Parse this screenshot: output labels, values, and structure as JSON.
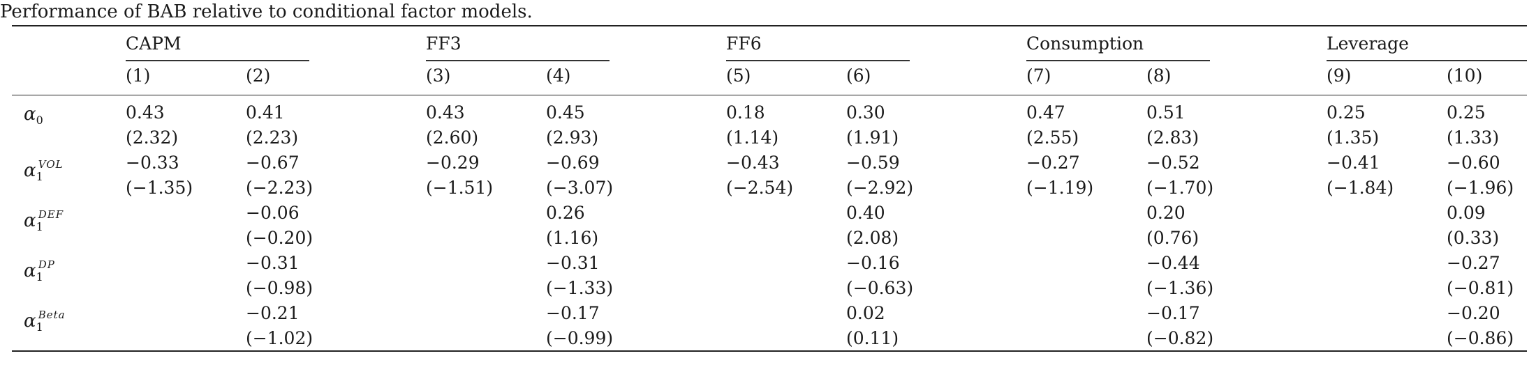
{
  "caption": "Performance of BAB relative to conditional factor models.",
  "groups": [
    "CAPM",
    "FF3",
    "FF6",
    "Consumption",
    "Leverage"
  ],
  "columns": [
    "(1)",
    "(2)",
    "(3)",
    "(4)",
    "(5)",
    "(6)",
    "(7)",
    "(8)",
    "(9)",
    "(10)"
  ],
  "rows": [
    {
      "symbol": "α",
      "sub": "0",
      "sup": "",
      "coef": [
        "0.43",
        "0.41",
        "0.43",
        "0.45",
        "0.18",
        "0.30",
        "0.47",
        "0.51",
        "0.25",
        "0.25"
      ],
      "tstat": [
        "(2.32)",
        "(2.23)",
        "(2.60)",
        "(2.93)",
        "(1.14)",
        "(1.91)",
        "(2.55)",
        "(2.83)",
        "(1.35)",
        "(1.33)"
      ]
    },
    {
      "symbol": "α",
      "sub": "1",
      "sup": "VOL",
      "coef": [
        "−0.33",
        "−0.67",
        "−0.29",
        "−0.69",
        "−0.43",
        "−0.59",
        "−0.27",
        "−0.52",
        "−0.41",
        "−0.60"
      ],
      "tstat": [
        "(−1.35)",
        "(−2.23)",
        "(−1.51)",
        "(−3.07)",
        "(−2.54)",
        "(−2.92)",
        "(−1.19)",
        "(−1.70)",
        "(−1.84)",
        "(−1.96)"
      ]
    },
    {
      "symbol": "α",
      "sub": "1",
      "sup": "DEF",
      "coef": [
        "",
        "−0.06",
        "",
        "0.26",
        "",
        "0.40",
        "",
        "0.20",
        "",
        "0.09"
      ],
      "tstat": [
        "",
        "(−0.20)",
        "",
        "(1.16)",
        "",
        "(2.08)",
        "",
        "(0.76)",
        "",
        "(0.33)"
      ]
    },
    {
      "symbol": "α",
      "sub": "1",
      "sup": "DP",
      "coef": [
        "",
        "−0.31",
        "",
        "−0.31",
        "",
        "−0.16",
        "",
        "−0.44",
        "",
        "−0.27"
      ],
      "tstat": [
        "",
        "(−0.98)",
        "",
        "(−1.33)",
        "",
        "(−0.63)",
        "",
        "(−1.36)",
        "",
        "(−0.81)"
      ]
    },
    {
      "symbol": "α",
      "sub": "1",
      "sup": "Beta",
      "coef": [
        "",
        "−0.21",
        "",
        "−0.17",
        "",
        "0.02",
        "",
        "−0.17",
        "",
        "−0.20"
      ],
      "tstat": [
        "",
        "(−1.02)",
        "",
        "(−0.99)",
        "",
        "(0.11)",
        "",
        "(−0.82)",
        "",
        "(−0.86)"
      ]
    }
  ]
}
